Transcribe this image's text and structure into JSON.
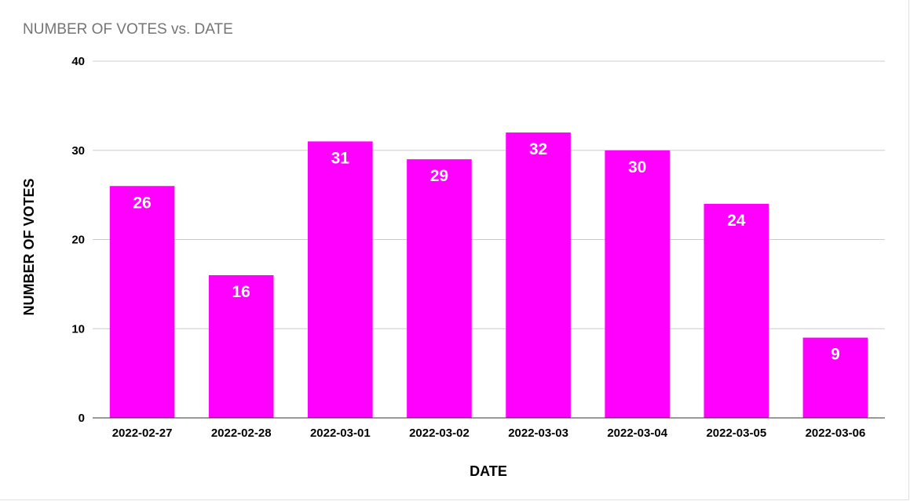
{
  "chart_data": {
    "type": "bar",
    "title": "NUMBER OF VOTES vs. DATE",
    "xlabel": "DATE",
    "ylabel": "NUMBER OF VOTES",
    "categories": [
      "2022-02-27",
      "2022-02-28",
      "2022-03-01",
      "2022-03-02",
      "2022-03-03",
      "2022-03-04",
      "2022-03-05",
      "2022-03-06"
    ],
    "values": [
      26,
      16,
      31,
      29,
      32,
      30,
      24,
      9
    ],
    "ylim": [
      0,
      40
    ],
    "yticks": [
      "0",
      "10",
      "20",
      "30",
      "40"
    ],
    "grid": true,
    "legend": "none",
    "bar_color": "#ff00ff",
    "data_labels": true
  }
}
